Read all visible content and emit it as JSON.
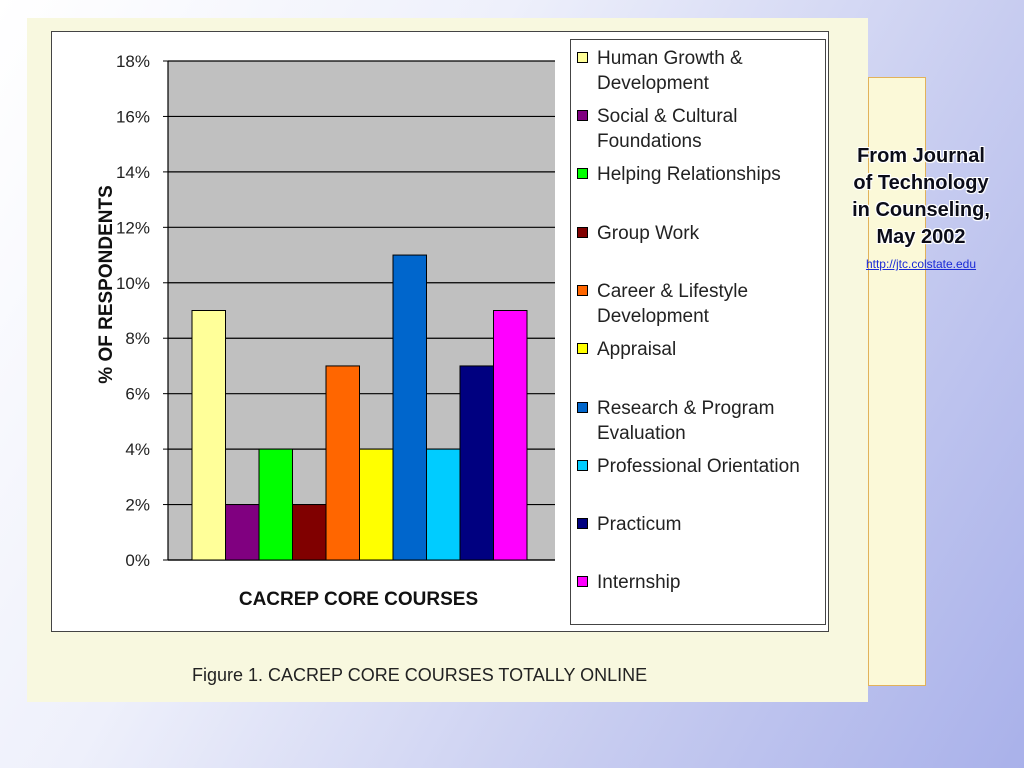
{
  "chart_data": {
    "type": "bar",
    "categories": [
      "Human Growth & Development",
      "Social & Cultural Foundations",
      "Helping Relationships",
      "Group Work",
      "Career & Lifestyle Development",
      "Appraisal",
      "Research & Program Evaluation",
      "Professional Orientation",
      "Practicum",
      "Internship"
    ],
    "values": [
      9,
      2,
      4,
      2,
      7,
      4,
      11,
      4,
      7,
      9
    ],
    "colors": [
      "#ffff99",
      "#800080",
      "#00ff00",
      "#800000",
      "#ff6600",
      "#ffff00",
      "#0066cc",
      "#00ccff",
      "#000080",
      "#ff00ff"
    ],
    "xlabel": "CACREP CORE COURSES",
    "ylabel": "% OF RESPONDENTS",
    "ylim": [
      0,
      18
    ],
    "yticks": [
      0,
      2,
      4,
      6,
      8,
      10,
      12,
      14,
      16,
      18
    ],
    "ytick_labels": [
      "0%",
      "2%",
      "4%",
      "6%",
      "8%",
      "10%",
      "12%",
      "14%",
      "16%",
      "18%"
    ],
    "plot_background": "#c0c0c0",
    "grid": true,
    "legend": "right"
  },
  "legend": {
    "items": [
      {
        "label": "Human Growth & Development",
        "color": "#ffff99"
      },
      {
        "label": "Social & Cultural Foundations",
        "color": "#800080"
      },
      {
        "label": "Helping Relationships",
        "color": "#00ff00"
      },
      {
        "label": "Group Work",
        "color": "#800000"
      },
      {
        "label": "Career & Lifestyle Development",
        "color": "#ff6600"
      },
      {
        "label": "Appraisal",
        "color": "#ffff00"
      },
      {
        "label": "Research & Program Evaluation",
        "color": "#0066cc"
      },
      {
        "label": "Professional Orientation",
        "color": "#00ccff"
      },
      {
        "label": "Practicum",
        "color": "#000080"
      },
      {
        "label": "Internship",
        "color": "#ff00ff"
      }
    ]
  },
  "caption": "Figure 1. CACREP CORE COURSES TOTALLY ONLINE",
  "side_note": {
    "title": "From Journal of Technology in Counseling, May 2002",
    "link": "http://jtc.colstate.edu"
  }
}
